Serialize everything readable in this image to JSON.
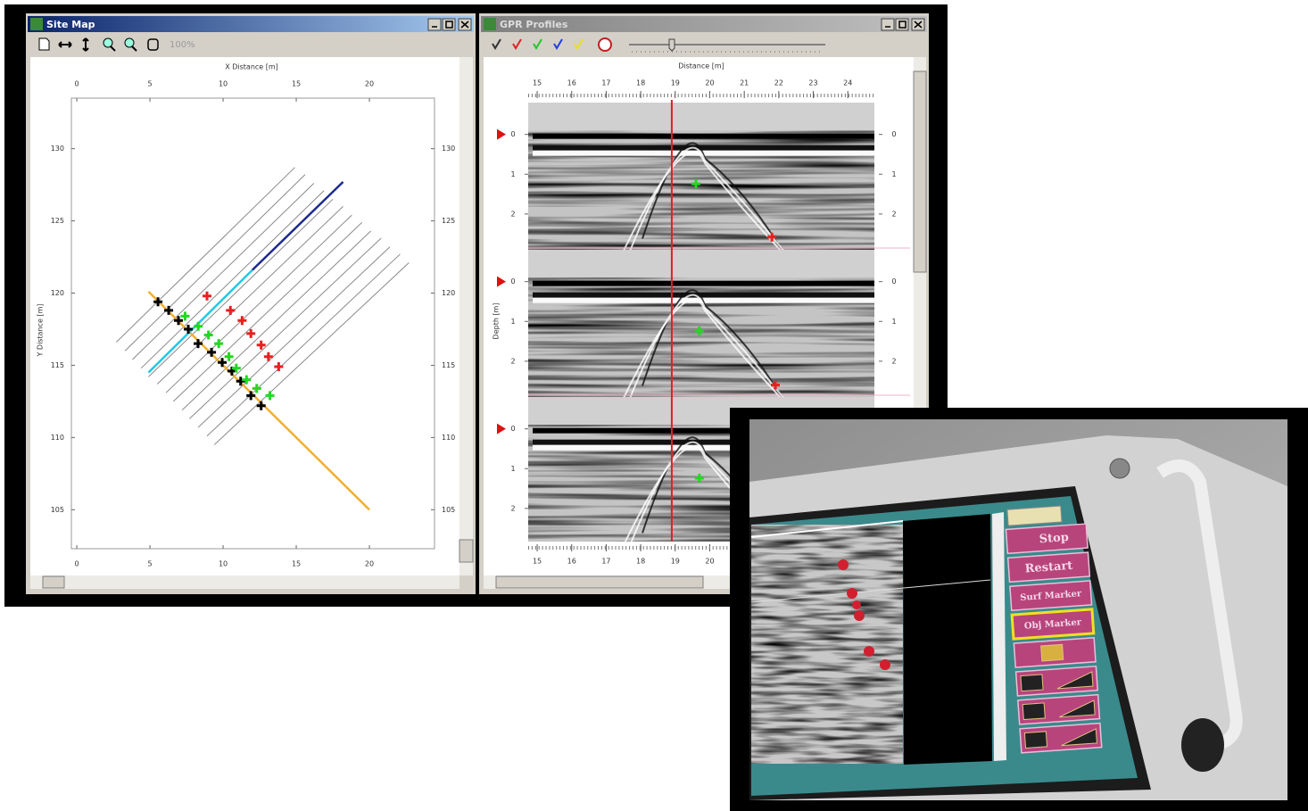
{
  "site_map": {
    "title": "Site Map",
    "zoom": "100%",
    "x_label": "X Distance [m]",
    "y_label": "Y Distance [m]",
    "xlim": [
      -0.37,
      24.45
    ],
    "ylim": [
      102.3,
      133.5
    ],
    "xticks": [
      0,
      5,
      10,
      15,
      20
    ],
    "yticks": [
      105,
      110,
      115,
      120,
      125,
      130
    ],
    "line_color": "#8a8a8a",
    "profile_lines": [
      {
        "x": [
          2.7,
          14.9
        ],
        "y": [
          116.6,
          128.7
        ]
      },
      {
        "x": [
          3.3,
          15.6
        ],
        "y": [
          116.0,
          128.2
        ]
      },
      {
        "x": [
          3.8,
          16.2
        ],
        "y": [
          115.4,
          127.6
        ]
      },
      {
        "x": [
          4.4,
          16.9
        ],
        "y": [
          114.8,
          127.1
        ]
      },
      {
        "x": [
          4.9,
          17.5
        ],
        "y": [
          114.2,
          126.5
        ]
      },
      {
        "x": [
          5.5,
          18.2
        ],
        "y": [
          113.7,
          126.0
        ]
      },
      {
        "x": [
          6.1,
          18.8
        ],
        "y": [
          113.1,
          125.4
        ]
      },
      {
        "x": [
          6.6,
          19.5
        ],
        "y": [
          112.5,
          124.9
        ]
      },
      {
        "x": [
          7.2,
          20.1
        ],
        "y": [
          111.9,
          124.3
        ]
      },
      {
        "x": [
          7.7,
          20.8
        ],
        "y": [
          111.3,
          123.8
        ]
      },
      {
        "x": [
          8.3,
          21.4
        ],
        "y": [
          110.7,
          123.2
        ]
      },
      {
        "x": [
          8.9,
          22.1
        ],
        "y": [
          110.1,
          122.7
        ]
      },
      {
        "x": [
          9.4,
          22.7
        ],
        "y": [
          109.5,
          122.1
        ]
      }
    ],
    "paths": [
      {
        "color": "#f0b030",
        "x": [
          4.9,
          20.0
        ],
        "y": [
          120.1,
          105.0
        ]
      },
      {
        "color": "#22c8e8",
        "x": [
          4.9,
          12.0
        ],
        "y": [
          114.5,
          121.6
        ]
      },
      {
        "color": "#1e2a8c",
        "x": [
          12.0,
          18.2
        ],
        "y": [
          121.6,
          127.7
        ]
      }
    ],
    "markers": [
      {
        "color": "#000000",
        "x": [
          5.55,
          6.28,
          6.95,
          7.62,
          8.29,
          9.21,
          9.94,
          10.6,
          11.2,
          11.9,
          12.6
        ],
        "y": [
          119.4,
          118.8,
          118.1,
          117.5,
          116.5,
          115.9,
          115.2,
          114.6,
          113.9,
          112.9,
          112.2
        ]
      },
      {
        "color": "#22d822",
        "x": [
          7.4,
          8.3,
          9.0,
          9.7,
          10.4,
          10.9,
          11.6,
          12.3,
          13.2
        ],
        "y": [
          118.4,
          117.7,
          117.1,
          116.5,
          115.6,
          114.8,
          114.0,
          113.4,
          112.9
        ]
      },
      {
        "color": "#e82020",
        "x": [
          8.9,
          10.5,
          11.3,
          11.9,
          12.6,
          13.1,
          13.8
        ],
        "y": [
          119.8,
          118.8,
          118.1,
          117.2,
          116.4,
          115.6,
          114.9
        ]
      }
    ]
  },
  "gpr": {
    "title": "GPR Profiles",
    "x_label": "Distance [m]",
    "y_label": "Depth [m]",
    "xlim": [
      14.74,
      24.77
    ],
    "xticks": [
      15,
      16,
      17,
      18,
      19,
      20,
      21,
      22,
      23,
      24
    ],
    "depth_lim": [
      -0.8,
      2.9
    ],
    "depth_ticks": [
      0,
      1,
      2
    ],
    "cursor": 18.9,
    "cursor_color": "#e02020",
    "panels": [
      {
        "markers": [
          {
            "x": 19.6,
            "depth": 1.24,
            "color": "#22d822"
          },
          {
            "x": 21.8,
            "depth": 2.58,
            "color": "#e82020"
          }
        ]
      },
      {
        "markers": [
          {
            "x": 19.7,
            "depth": 1.24,
            "color": "#22d822"
          },
          {
            "x": 21.9,
            "depth": 2.6,
            "color": "#e82020"
          }
        ]
      },
      {
        "markers": [
          {
            "x": 19.7,
            "depth": 1.24,
            "color": "#22d822"
          }
        ]
      }
    ]
  },
  "device": {
    "buttons": [
      "Stop",
      "Restart",
      "Surf Marker",
      "Obj Marker"
    ]
  }
}
